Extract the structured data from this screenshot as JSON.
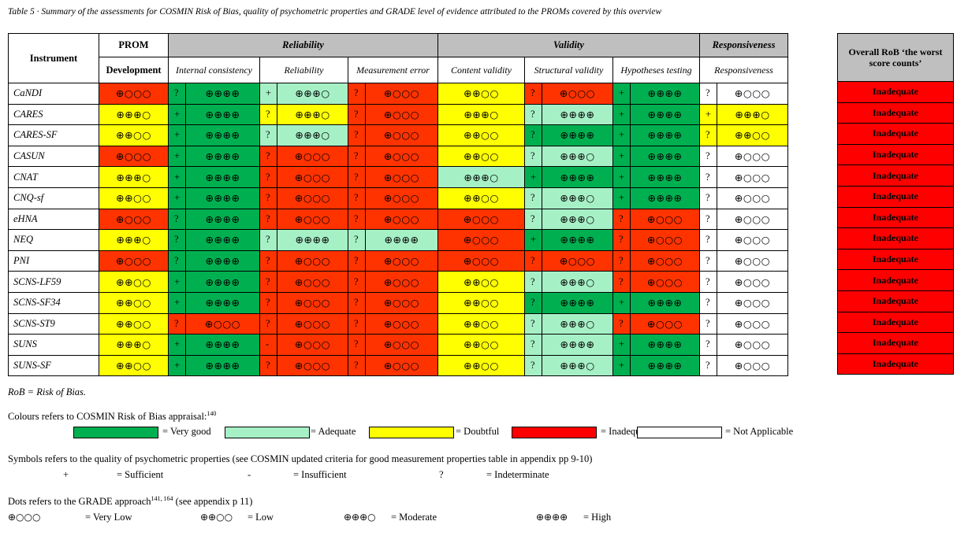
{
  "caption": "Table 5 · Summary of the assessments for COSMIN Risk of Bias, quality of psychometric properties and GRADE level of evidence attributed to the PROMs covered by this overview",
  "headers": {
    "instrument": "Instrument",
    "prom": "PROM",
    "development": "Development",
    "reliability_group": "Reliability",
    "validity_group": "Validity",
    "responsiveness_group": "Responsiveness",
    "internal_consistency": "Internal consistency",
    "reliability": "Reliability",
    "measurement_error": "Measurement error",
    "content_validity": "Content validity",
    "structural_validity": "Structural validity",
    "hypotheses_testing": "Hypotheses testing",
    "responsiveness": "Responsiveness",
    "overall_rob": "Overall RoB ‘the worst score counts’"
  },
  "colors": {
    "very_good": "#00b050",
    "adequate": "#a6f0c6",
    "doubtful": "#ffff00",
    "inadequate": "#ff3300",
    "not_applicable": "#ffffff"
  },
  "rows": [
    {
      "name": "CaNDI",
      "dev": [
        "in",
        "⊕○○○"
      ],
      "ic": [
        "vg",
        "?",
        "⊕⊕⊕⊕"
      ],
      "rel": [
        "ad",
        "+",
        "⊕⊕⊕○"
      ],
      "me": [
        "in",
        "?",
        "⊕○○○"
      ],
      "cv": [
        "do",
        "⊕⊕○○"
      ],
      "sv": [
        "in",
        "?",
        "⊕○○○"
      ],
      "ht": [
        "vg",
        "+",
        "⊕⊕⊕⊕"
      ],
      "resp": [
        "na",
        "?",
        "⊕○○○"
      ],
      "overall": "Inadequate"
    },
    {
      "name": "CARES",
      "dev": [
        "do",
        "⊕⊕⊕○"
      ],
      "ic": [
        "vg",
        "+",
        "⊕⊕⊕⊕"
      ],
      "rel": [
        "do",
        "?",
        "⊕⊕⊕○"
      ],
      "me": [
        "in",
        "?",
        "⊕○○○"
      ],
      "cv": [
        "do",
        "⊕⊕⊕○"
      ],
      "sv": [
        "ad",
        "?",
        "⊕⊕⊕⊕"
      ],
      "ht": [
        "vg",
        "+",
        "⊕⊕⊕⊕"
      ],
      "resp": [
        "do",
        "+",
        "⊕⊕⊕○"
      ],
      "overall": "Inadequate"
    },
    {
      "name": "CARES-SF",
      "dev": [
        "do",
        "⊕⊕○○"
      ],
      "ic": [
        "vg",
        "+",
        "⊕⊕⊕⊕"
      ],
      "rel": [
        "ad",
        "?",
        "⊕⊕⊕○"
      ],
      "me": [
        "in",
        "?",
        "⊕○○○"
      ],
      "cv": [
        "do",
        "⊕⊕○○"
      ],
      "sv": [
        "vg",
        "?",
        "⊕⊕⊕⊕"
      ],
      "ht": [
        "vg",
        "+",
        "⊕⊕⊕⊕"
      ],
      "resp": [
        "do",
        "?",
        "⊕⊕○○"
      ],
      "overall": "Inadequate"
    },
    {
      "name": "CASUN",
      "dev": [
        "in",
        "⊕○○○"
      ],
      "ic": [
        "vg",
        "+",
        "⊕⊕⊕⊕"
      ],
      "rel": [
        "in",
        "?",
        "⊕○○○"
      ],
      "me": [
        "in",
        "?",
        "⊕○○○"
      ],
      "cv": [
        "do",
        "⊕⊕○○"
      ],
      "sv": [
        "ad",
        "?",
        "⊕⊕⊕○"
      ],
      "ht": [
        "vg",
        "+",
        "⊕⊕⊕⊕"
      ],
      "resp": [
        "na",
        "?",
        "⊕○○○"
      ],
      "overall": "Inadequate"
    },
    {
      "name": "CNAT",
      "dev": [
        "do",
        "⊕⊕⊕○"
      ],
      "ic": [
        "vg",
        "+",
        "⊕⊕⊕⊕"
      ],
      "rel": [
        "in",
        "?",
        "⊕○○○"
      ],
      "me": [
        "in",
        "?",
        "⊕○○○"
      ],
      "cv": [
        "ad",
        "⊕⊕⊕○"
      ],
      "sv": [
        "vg",
        "+",
        "⊕⊕⊕⊕"
      ],
      "ht": [
        "vg",
        "+",
        "⊕⊕⊕⊕"
      ],
      "resp": [
        "na",
        "?",
        "⊕○○○"
      ],
      "overall": "Inadequate"
    },
    {
      "name": "CNQ-sf",
      "dev": [
        "do",
        "⊕⊕○○"
      ],
      "ic": [
        "vg",
        "+",
        "⊕⊕⊕⊕"
      ],
      "rel": [
        "in",
        "?",
        "⊕○○○"
      ],
      "me": [
        "in",
        "?",
        "⊕○○○"
      ],
      "cv": [
        "do",
        "⊕⊕○○"
      ],
      "sv": [
        "ad",
        "?",
        "⊕⊕⊕○"
      ],
      "ht": [
        "vg",
        "+",
        "⊕⊕⊕⊕"
      ],
      "resp": [
        "na",
        "?",
        "⊕○○○"
      ],
      "overall": "Inadequate"
    },
    {
      "name": "eHNA",
      "dev": [
        "in",
        "⊕○○○"
      ],
      "ic": [
        "vg",
        "?",
        "⊕⊕⊕⊕"
      ],
      "rel": [
        "in",
        "?",
        "⊕○○○"
      ],
      "me": [
        "in",
        "?",
        "⊕○○○"
      ],
      "cv": [
        "in",
        "⊕○○○"
      ],
      "sv": [
        "ad",
        "?",
        "⊕⊕⊕○"
      ],
      "ht": [
        "in",
        "?",
        "⊕○○○"
      ],
      "resp": [
        "na",
        "?",
        "⊕○○○"
      ],
      "overall": "Inadequate"
    },
    {
      "name": "NEQ",
      "dev": [
        "do",
        "⊕⊕⊕○"
      ],
      "ic": [
        "vg",
        "?",
        "⊕⊕⊕⊕"
      ],
      "rel": [
        "ad",
        "?",
        "⊕⊕⊕⊕"
      ],
      "me": [
        "ad",
        "?",
        "⊕⊕⊕⊕"
      ],
      "cv": [
        "in",
        "⊕○○○"
      ],
      "sv": [
        "vg",
        "+",
        "⊕⊕⊕⊕"
      ],
      "ht": [
        "in",
        "?",
        "⊕○○○"
      ],
      "resp": [
        "na",
        "?",
        "⊕○○○"
      ],
      "overall": "Inadequate"
    },
    {
      "name": "PNI",
      "dev": [
        "in",
        "⊕○○○"
      ],
      "ic": [
        "vg",
        "?",
        "⊕⊕⊕⊕"
      ],
      "rel": [
        "in",
        "?",
        "⊕○○○"
      ],
      "me": [
        "in",
        "?",
        "⊕○○○"
      ],
      "cv": [
        "in",
        "⊕○○○"
      ],
      "sv": [
        "in",
        "?",
        "⊕○○○"
      ],
      "ht": [
        "in",
        "?",
        "⊕○○○"
      ],
      "resp": [
        "na",
        "?",
        "⊕○○○"
      ],
      "overall": "Inadequate"
    },
    {
      "name": "SCNS-LF59",
      "dev": [
        "do",
        "⊕⊕○○"
      ],
      "ic": [
        "vg",
        "+",
        "⊕⊕⊕⊕"
      ],
      "rel": [
        "in",
        "?",
        "⊕○○○"
      ],
      "me": [
        "in",
        "?",
        "⊕○○○"
      ],
      "cv": [
        "do",
        "⊕⊕○○"
      ],
      "sv": [
        "ad",
        "?",
        "⊕⊕⊕○"
      ],
      "ht": [
        "in",
        "?",
        "⊕○○○"
      ],
      "resp": [
        "na",
        "?",
        "⊕○○○"
      ],
      "overall": "Inadequate"
    },
    {
      "name": "SCNS-SF34",
      "dev": [
        "do",
        "⊕⊕○○"
      ],
      "ic": [
        "vg",
        "+",
        "⊕⊕⊕⊕"
      ],
      "rel": [
        "in",
        "?",
        "⊕○○○"
      ],
      "me": [
        "in",
        "?",
        "⊕○○○"
      ],
      "cv": [
        "do",
        "⊕⊕○○"
      ],
      "sv": [
        "vg",
        "?",
        "⊕⊕⊕⊕"
      ],
      "ht": [
        "vg",
        "+",
        "⊕⊕⊕⊕"
      ],
      "resp": [
        "na",
        "?",
        "⊕○○○"
      ],
      "overall": "Inadequate"
    },
    {
      "name": "SCNS-ST9",
      "dev": [
        "do",
        "⊕⊕○○"
      ],
      "ic": [
        "in",
        "?",
        "⊕○○○"
      ],
      "rel": [
        "in",
        "?",
        "⊕○○○"
      ],
      "me": [
        "in",
        "?",
        "⊕○○○"
      ],
      "cv": [
        "do",
        "⊕⊕○○"
      ],
      "sv": [
        "ad",
        "?",
        "⊕⊕⊕○"
      ],
      "ht": [
        "in",
        "?",
        "⊕○○○"
      ],
      "resp": [
        "na",
        "?",
        "⊕○○○"
      ],
      "overall": "Inadequate"
    },
    {
      "name": "SUNS",
      "dev": [
        "do",
        "⊕⊕⊕○"
      ],
      "ic": [
        "vg",
        "+",
        "⊕⊕⊕⊕"
      ],
      "rel": [
        "in",
        "-",
        "⊕○○○"
      ],
      "me": [
        "in",
        "?",
        "⊕○○○"
      ],
      "cv": [
        "do",
        "⊕⊕○○"
      ],
      "sv": [
        "ad",
        "?",
        "⊕⊕⊕⊕"
      ],
      "ht": [
        "vg",
        "+",
        "⊕⊕⊕⊕"
      ],
      "resp": [
        "na",
        "?",
        "⊕○○○"
      ],
      "overall": "Inadequate"
    },
    {
      "name": "SUNS-SF",
      "dev": [
        "do",
        "⊕⊕○○"
      ],
      "ic": [
        "vg",
        "+",
        "⊕⊕⊕⊕"
      ],
      "rel": [
        "in",
        "?",
        "⊕○○○"
      ],
      "me": [
        "in",
        "?",
        "⊕○○○"
      ],
      "cv": [
        "do",
        "⊕⊕○○"
      ],
      "sv": [
        "ad",
        "?",
        "⊕⊕⊕○"
      ],
      "ht": [
        "vg",
        "+",
        "⊕⊕⊕⊕"
      ],
      "resp": [
        "na",
        "?",
        "⊕○○○"
      ],
      "overall": "Inadequate"
    }
  ],
  "footnote": "RoB = Risk of Bias.",
  "legend": {
    "colours_title": "Colours refers to COSMIN Risk of Bias appraisal:",
    "colours_ref": "140",
    "colours": [
      "= Very good",
      "= Adequate",
      "= Doubtful",
      "= Inadequate",
      "= Not Applicable"
    ],
    "symbols_title": "Symbols refers to the quality of psychometric properties (see COSMIN updated criteria for good measurement properties table in appendix pp 9-10)",
    "symbols": [
      {
        "sym": "+",
        "label": "= Sufficient"
      },
      {
        "sym": "-",
        "label": "= Insufficient"
      },
      {
        "sym": "?",
        "label": "= Indeterminate"
      }
    ],
    "dots_title": "Dots refers to the GRADE approach",
    "dots_ref": "141, 164",
    "dots_title_tail": " (see appendix p 11)",
    "dots": [
      {
        "sym": "⊕○○○",
        "label": "= Very Low"
      },
      {
        "sym": "⊕⊕○○",
        "label": "= Low"
      },
      {
        "sym": "⊕⊕⊕○",
        "label": "= Moderate"
      },
      {
        "sym": "⊕⊕⊕⊕",
        "label": "= High"
      }
    ]
  }
}
